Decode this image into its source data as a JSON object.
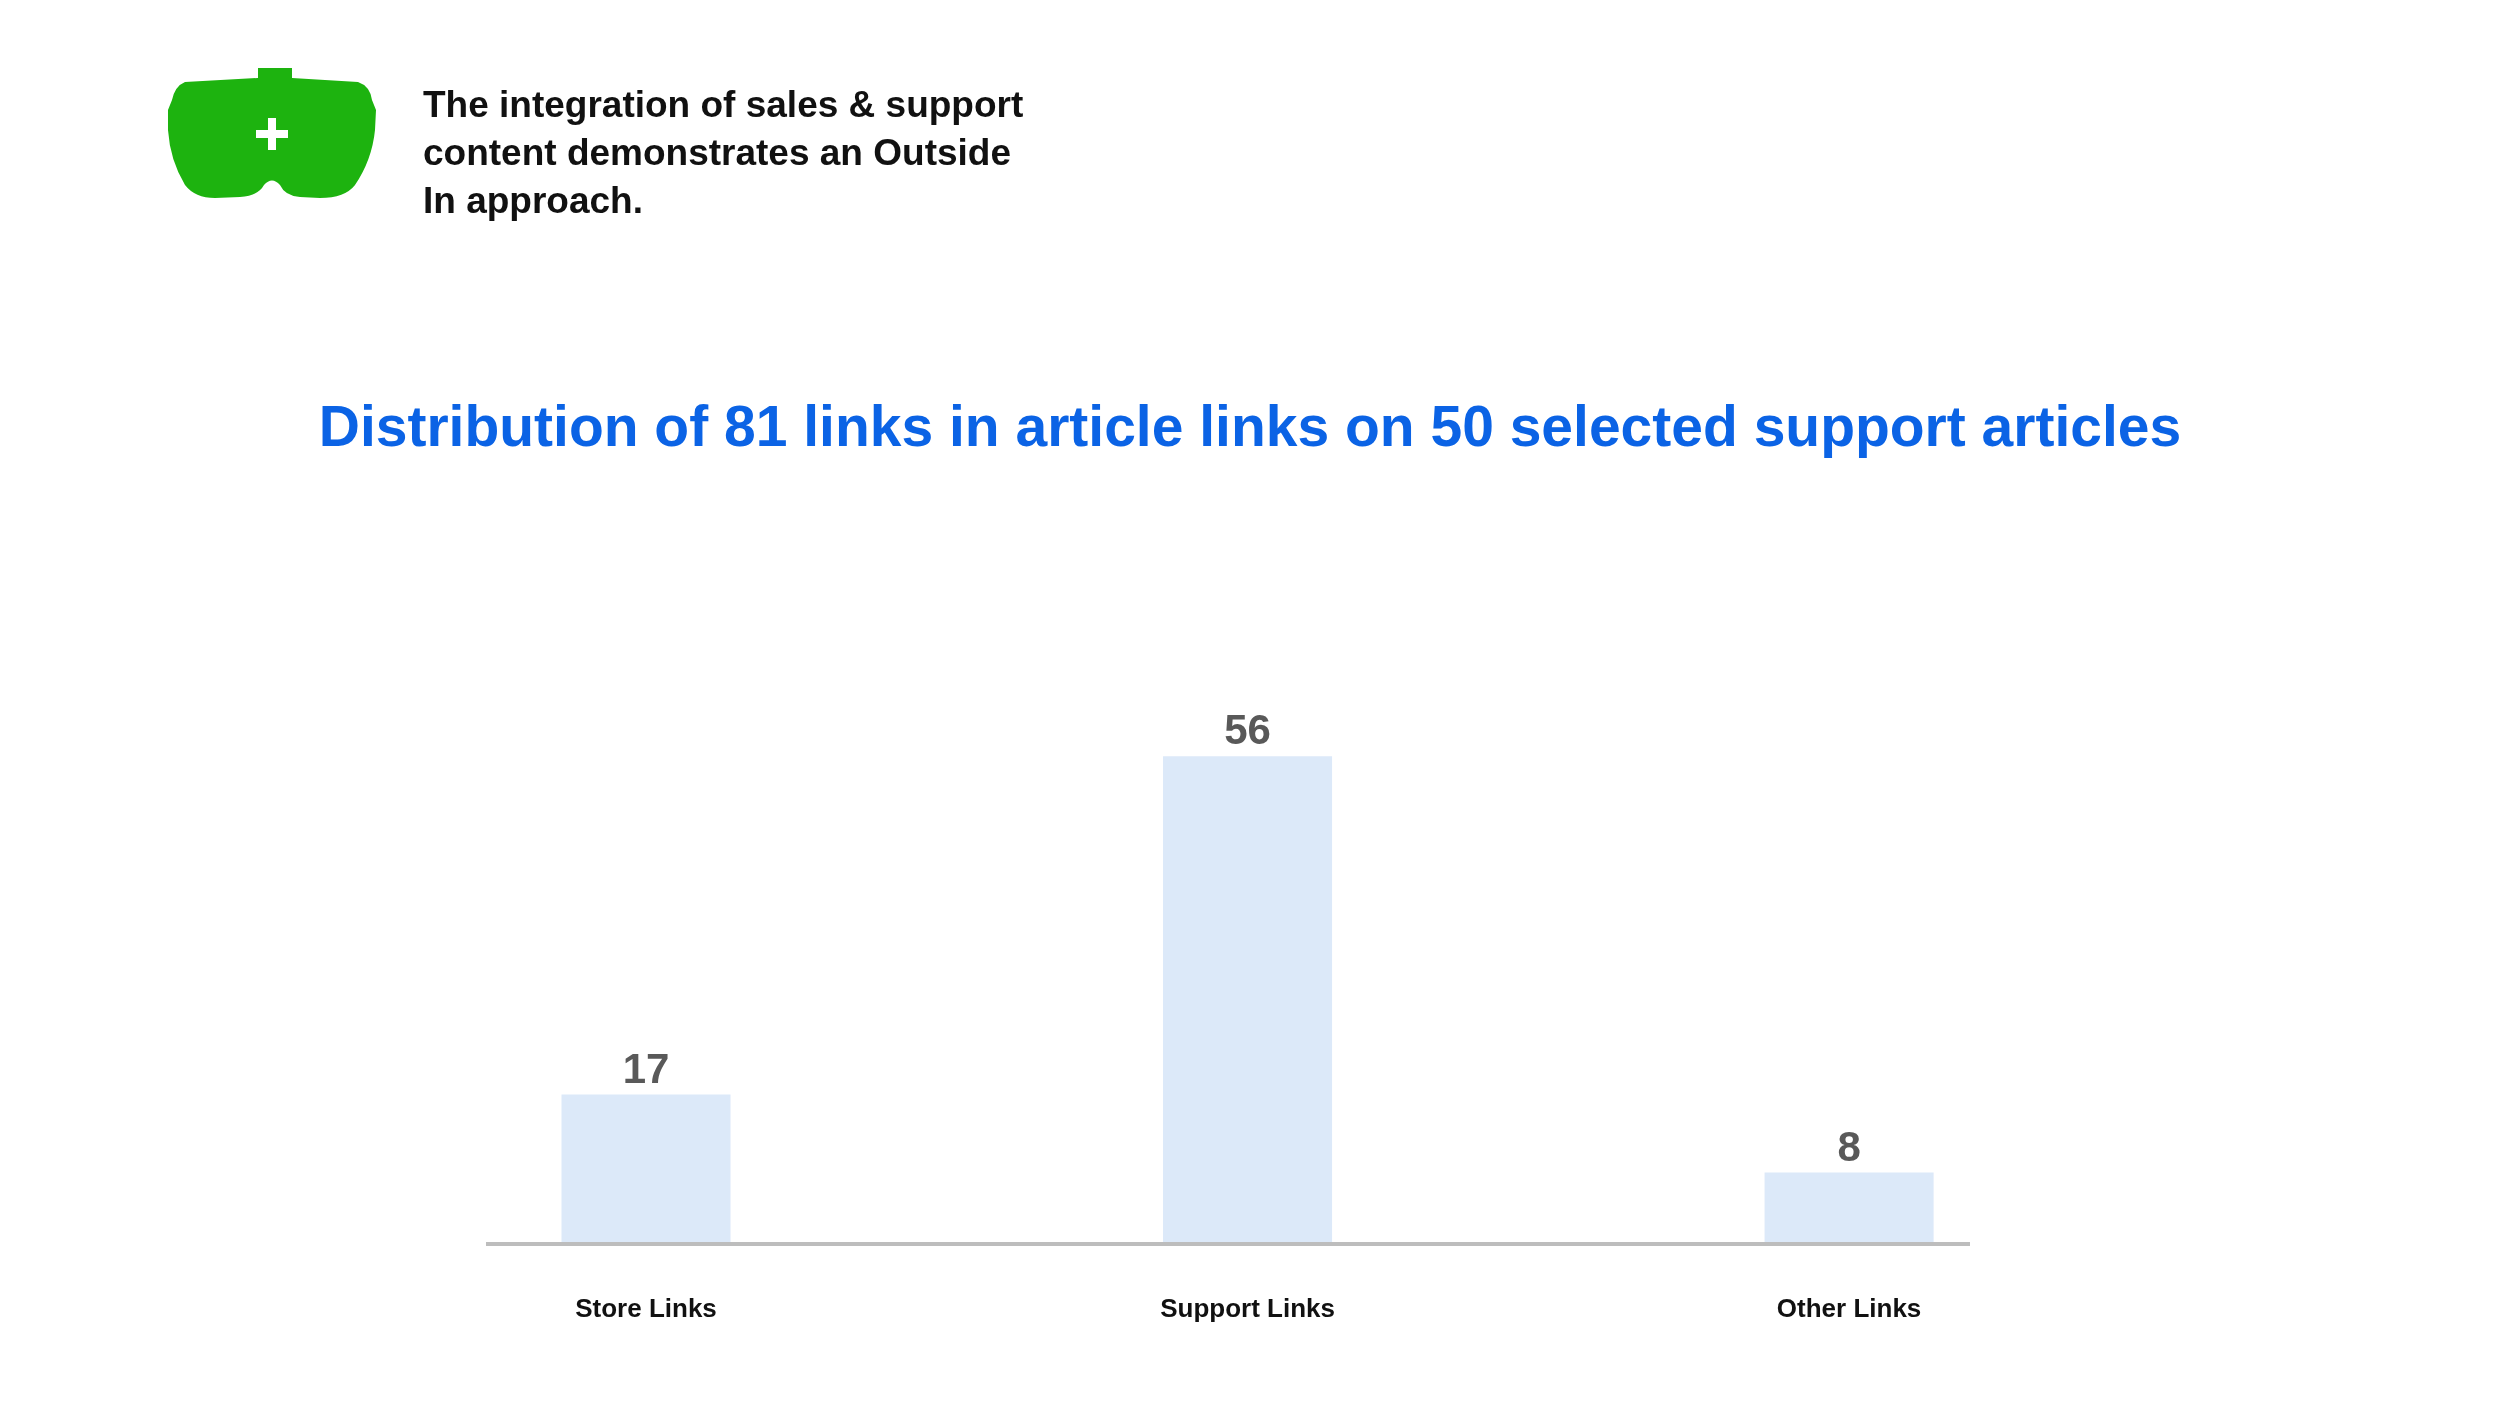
{
  "chart_data": {
    "type": "bar",
    "title": "Distribution of 81 links in article links on 50 selected support articles",
    "categories": [
      "Store Links",
      "Support Links",
      "Other Links"
    ],
    "values": [
      17,
      56,
      8
    ],
    "color": "#dce9f9",
    "data_labels": true,
    "annotations": [
      "The integration of sales & support\ncontent demonstrates an Outside\nIn approach."
    ]
  }
}
